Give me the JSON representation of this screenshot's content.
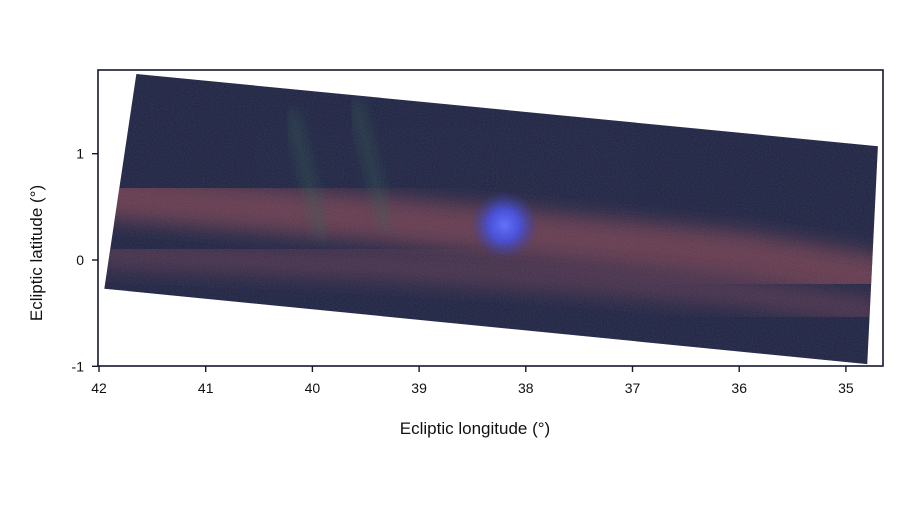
{
  "chart_data": {
    "type": "heatmap",
    "title": "",
    "xlabel": "Ecliptic longitude (°)",
    "ylabel": "Ecliptic latitude (°)",
    "xlim": [
      42,
      34.6
    ],
    "ylim": [
      -1,
      1.8
    ],
    "x_reversed": true,
    "xticks": [
      42,
      41,
      40,
      39,
      38,
      37,
      36,
      35
    ],
    "xtick_labels": [
      "42",
      "41",
      "40",
      "39",
      "38",
      "37",
      "36",
      "35"
    ],
    "yticks": [
      1,
      0,
      -1
    ],
    "ytick_labels": [
      "1",
      "0",
      "-1"
    ],
    "grid": false,
    "legend": "none",
    "image_footprint": {
      "corners_lon_lat": [
        [
          41.65,
          1.75
        ],
        [
          34.7,
          1.07
        ],
        [
          34.8,
          -0.98
        ],
        [
          41.95,
          -0.27
        ]
      ]
    },
    "features": [
      {
        "name": "bright compact source",
        "lon": 38.2,
        "lat": 0.33,
        "color": "#4a55f0"
      },
      {
        "name": "dust band",
        "path_lon_lat": [
          [
            41.9,
            0.6
          ],
          [
            39.5,
            0.4
          ],
          [
            37.5,
            0.2
          ],
          [
            36,
            0.05
          ],
          [
            34.8,
            -0.15
          ]
        ],
        "color": "#a04a58"
      },
      {
        "name": "secondary dust band",
        "path_lon_lat": [
          [
            41.9,
            0.05
          ],
          [
            39.5,
            -0.05
          ],
          [
            37.5,
            -0.18
          ],
          [
            36,
            -0.3
          ],
          [
            34.8,
            -0.48
          ]
        ],
        "color": "#8a4558"
      }
    ],
    "colors": {
      "background": "#1a1f3e",
      "dark_sky": "#161a38",
      "dust": "#a04a58",
      "source": "#4a55f0",
      "frame": "#14182e"
    }
  }
}
